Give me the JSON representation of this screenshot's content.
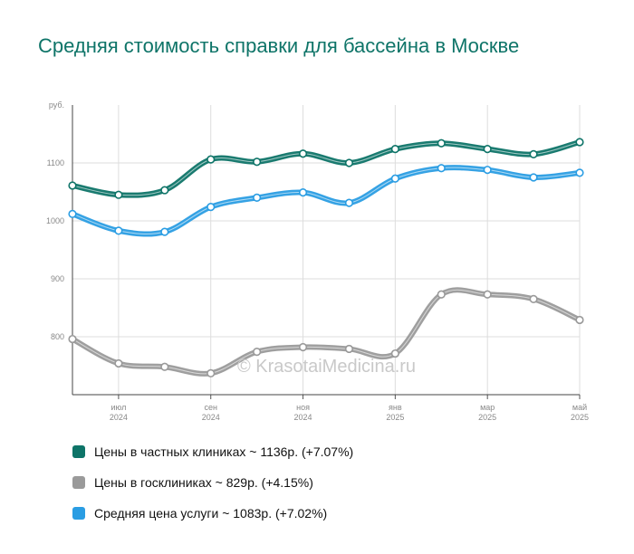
{
  "chart_data": {
    "type": "line",
    "title": "Средняя стоимость справки для бассейна в Москве",
    "ylabel": "руб.",
    "ylim": [
      700,
      1200
    ],
    "y_ticks": [
      800,
      900,
      1000,
      1100
    ],
    "x_count": 12,
    "x_ticks": [
      {
        "index": 1,
        "line1": "июл",
        "line2": "2024"
      },
      {
        "index": 3,
        "line1": "сен",
        "line2": "2024"
      },
      {
        "index": 5,
        "line1": "ноя",
        "line2": "2024"
      },
      {
        "index": 7,
        "line1": "янв",
        "line2": "2025"
      },
      {
        "index": 9,
        "line1": "мар",
        "line2": "2025"
      },
      {
        "index": 11,
        "line1": "май",
        "line2": "2025"
      }
    ],
    "grid": true,
    "watermark": "© KrasotaiMedicina.ru",
    "series": [
      {
        "name": "Цены в частных клиниках",
        "color": "#0e7468",
        "values": [
          1061,
          1045,
          1053,
          1106,
          1102,
          1116,
          1100,
          1124,
          1134,
          1124,
          1115,
          1136
        ]
      },
      {
        "name": "Цены в госклиниках",
        "color": "#9a9a9a",
        "values": [
          796,
          754,
          748,
          737,
          774,
          782,
          779,
          771,
          873,
          873,
          865,
          829
        ]
      },
      {
        "name": "Средняя цена услуги",
        "color": "#2a9de3",
        "values": [
          1012,
          983,
          981,
          1024,
          1040,
          1049,
          1031,
          1073,
          1091,
          1088,
          1075,
          1083
        ]
      }
    ]
  },
  "legend": [
    {
      "text": "Цены в частных клиниках ~ 1136р. (+7.07%)",
      "color": "#0e7468"
    },
    {
      "text": "Цены в госклиниках ~ 829р. (+4.15%)",
      "color": "#9a9a9a"
    },
    {
      "text": "Средняя цена услуги ~ 1083р. (+7.02%)",
      "color": "#2a9de3"
    }
  ]
}
